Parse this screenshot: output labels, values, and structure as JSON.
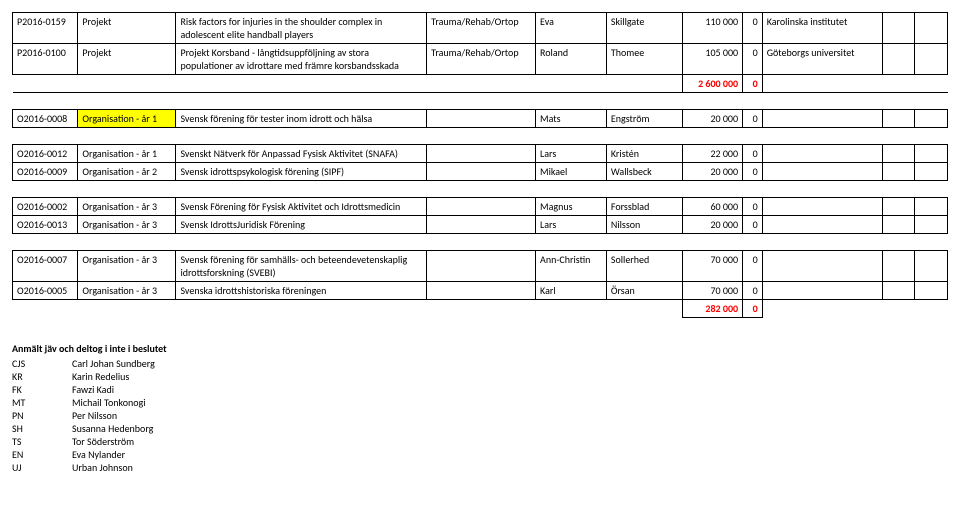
{
  "rows": [
    {
      "kind": "data",
      "c1": "P2016-0159",
      "c2": "Projekt",
      "c3": "Risk factors for injuries in the shoulder complex in adolescent elite handball players",
      "c4": "Trauma/Rehab/Ortop",
      "c5": "Eva",
      "c6": "Skillgate",
      "c7": "110 000",
      "c8": "0",
      "c9": "Karolinska institutet",
      "c10": "",
      "c11": ""
    },
    {
      "kind": "data",
      "c1": "P2016-0100",
      "c2": "Projekt",
      "c3": "Projekt Korsband - långtidsuppföljning av stora populationer av idrottare med främre korsbandsskada",
      "c4": "Trauma/Rehab/Ortop",
      "c5": "Roland",
      "c6": "Thomee",
      "c7": "105 000",
      "c8": "0",
      "c9": "Göteborgs universitet",
      "c10": "",
      "c11": ""
    },
    {
      "kind": "total",
      "c7": "2 600 000",
      "c8": "0",
      "c7_class": "red bold",
      "c8_class": "red bold"
    },
    {
      "kind": "spacer"
    },
    {
      "kind": "data",
      "c1": "O2016-0008",
      "c2": "Organisation - år 1",
      "c2_class": "highlight",
      "c3": "Svensk förening för tester inom idrott och hälsa",
      "c4": "",
      "c5": "Mats",
      "c6": "Engström",
      "c7": "20 000",
      "c8": "0",
      "c9": "",
      "c10": "",
      "c11": ""
    },
    {
      "kind": "spacer"
    },
    {
      "kind": "data",
      "c1": "O2016-0012",
      "c2": "Organisation - år 1",
      "c3": "Svenskt Nätverk för Anpassad Fysisk Aktivitet (SNAFA)",
      "c4": "",
      "c5": "Lars",
      "c6": "Kristén",
      "c7": "22 000",
      "c8": "0",
      "c9": "",
      "c10": "",
      "c11": ""
    },
    {
      "kind": "data",
      "c1": "O2016-0009",
      "c2": "Organisation - år 2",
      "c3": "Svensk idrottspsykologisk förening (SIPF)",
      "c4": "",
      "c5": "Mikael",
      "c6": "Wallsbeck",
      "c7": "20 000",
      "c8": "0",
      "c9": "",
      "c10": "",
      "c11": ""
    },
    {
      "kind": "spacer"
    },
    {
      "kind": "data",
      "c1": "O2016-0002",
      "c2": "Organisation - år 3",
      "c3": "Svensk Förening för Fysisk Aktivitet och Idrottsmedicin",
      "c4": "",
      "c5": "Magnus",
      "c6": "Forssblad",
      "c7": "60 000",
      "c8": "0",
      "c9": "",
      "c10": "",
      "c11": ""
    },
    {
      "kind": "data",
      "c1": "O2016-0013",
      "c2": "Organisation - år 3",
      "c3": "Svensk IdrottsJuridisk Förening",
      "c4": "",
      "c5": "Lars",
      "c6": "Nilsson",
      "c7": "20 000",
      "c8": "0",
      "c9": "",
      "c10": "",
      "c11": ""
    },
    {
      "kind": "spacer"
    },
    {
      "kind": "data",
      "c1": "O2016-0007",
      "c2": "Organisation - år 3",
      "c3": "Svensk förening för samhälls- och beteendevetenskaplig idrottsforskning (SVEBI)",
      "c4": "",
      "c5": "Ann-Christin",
      "c6": "Sollerhed",
      "c7": "70 000",
      "c8": "0",
      "c9": "",
      "c10": "",
      "c11": ""
    },
    {
      "kind": "data",
      "c1": "O2016-0005",
      "c2": "Organisation - år 3",
      "c3": "Svenska idrottshistoriska föreningen",
      "c4": "",
      "c5": "Karl",
      "c6": "Örsan",
      "c7": "70 000",
      "c8": "0",
      "c9": "",
      "c10": "",
      "c11": ""
    },
    {
      "kind": "total",
      "c7": "282 000",
      "c8": "0",
      "c7_class": "red bold",
      "c8_class": "red bold"
    }
  ],
  "footer": {
    "title": "Anmält jäv och deltog i inte i beslutet",
    "entries": [
      {
        "key": "CJS",
        "name": "Carl Johan Sundberg"
      },
      {
        "key": "KR",
        "name": "Karin Redelius"
      },
      {
        "key": "FK",
        "name": "Fawzi Kadi"
      },
      {
        "key": "MT",
        "name": "Michail Tonkonogi"
      },
      {
        "key": "PN",
        "name": "Per Nilsson"
      },
      {
        "key": "SH",
        "name": "Susanna Hedenborg"
      },
      {
        "key": "TS",
        "name": "Tor Söderström"
      },
      {
        "key": "EN",
        "name": "Eva Nylander"
      },
      {
        "key": "UJ",
        "name": "Urban Johnson"
      }
    ]
  }
}
